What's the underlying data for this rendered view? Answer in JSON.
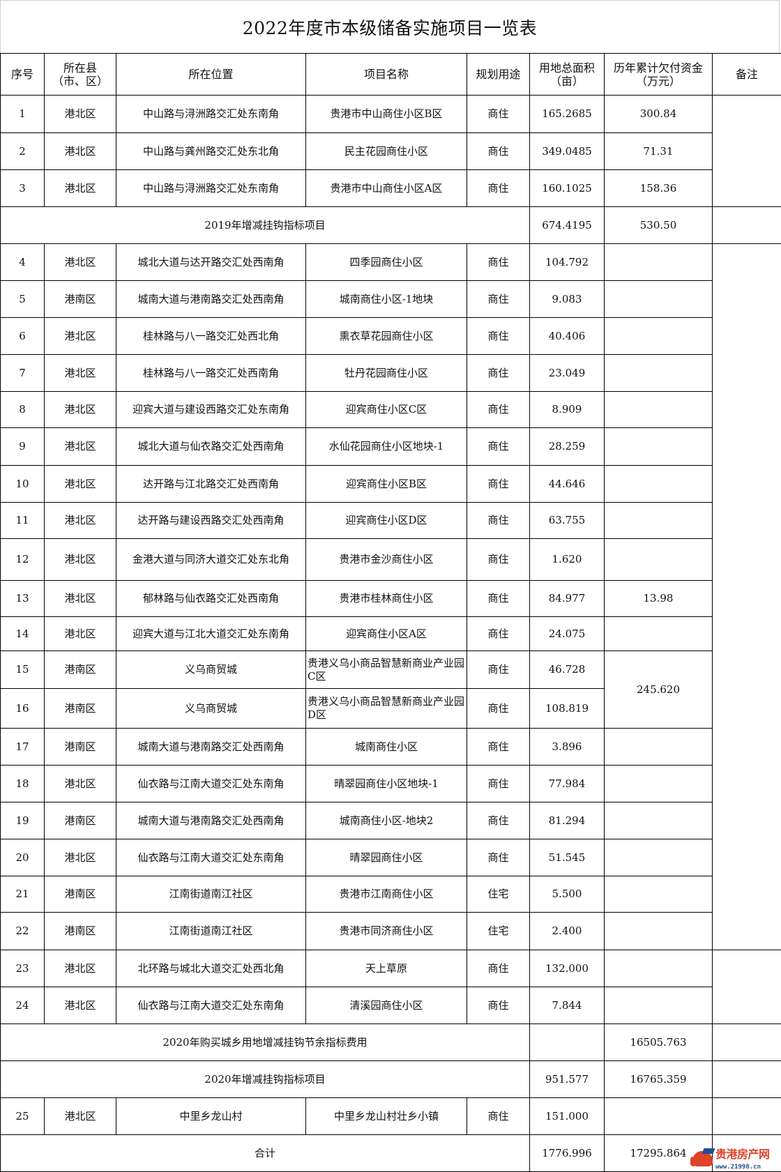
{
  "title": "2022年度市本级储备实施项目一览表",
  "headers": [
    "序号",
    "所在县\n（市、区）",
    "所在位置",
    "项目名称",
    "规划用途",
    "用地总面积\n（亩）",
    "历年累计欠付资金\n（万元）",
    "备注"
  ],
  "rows": [
    {
      "type": "item",
      "seq": "1",
      "county": "港北区",
      "location": "中山路与浔洲路交汇处东南角",
      "name": "贵港市中山商住小区B区",
      "use": "商住",
      "area": "165.2685",
      "funds": "300.84"
    },
    {
      "type": "item",
      "seq": "2",
      "county": "港北区",
      "location": "中山路与龚州路交汇处东北角",
      "name": "民主花园商住小区",
      "use": "商住",
      "area": "349.0485",
      "funds": "71.31"
    },
    {
      "type": "item",
      "seq": "3",
      "county": "港北区",
      "location": "中山路与浔洲路交汇处东南角",
      "name": "贵港市中山商住小区A区",
      "use": "商住",
      "area": "160.1025",
      "funds": "158.36"
    },
    {
      "type": "summary",
      "label": "2019年增减挂钩指标项目",
      "area": "674.4195",
      "funds": "530.50"
    },
    {
      "type": "item",
      "seq": "4",
      "county": "港北区",
      "location": "城北大道与达开路交汇处西南角",
      "name": "四季园商住小区",
      "use": "商住",
      "area": "104.792",
      "funds": ""
    },
    {
      "type": "item",
      "seq": "5",
      "county": "港南区",
      "location": "城南大道与港南路交汇处西南角",
      "name": "城南商住小区-1地块",
      "use": "商住",
      "area": "9.083",
      "funds": ""
    },
    {
      "type": "item",
      "seq": "6",
      "county": "港北区",
      "location": "桂林路与八一路交汇处西北角",
      "name": "熏衣草花园商住小区",
      "use": "商住",
      "area": "40.406",
      "funds": ""
    },
    {
      "type": "item",
      "seq": "7",
      "county": "港北区",
      "location": "桂林路与八一路交汇处西南角",
      "name": "牡丹花园商住小区",
      "use": "商住",
      "area": "23.049",
      "funds": ""
    },
    {
      "type": "item",
      "seq": "8",
      "county": "港北区",
      "location": "迎宾大道与建设西路交汇处东南角",
      "name": "迎宾商住小区C区",
      "use": "商住",
      "area": "8.909",
      "funds": ""
    },
    {
      "type": "item",
      "seq": "9",
      "county": "港北区",
      "location": "城北大道与仙衣路交汇处西南角",
      "name": "水仙花园商住小区地块-1",
      "use": "商住",
      "area": "28.259",
      "funds": ""
    },
    {
      "type": "item",
      "seq": "10",
      "county": "港北区",
      "location": "达开路与江北路交汇处西南角",
      "name": "迎宾商住小区B区",
      "use": "商住",
      "area": "44.646",
      "funds": ""
    },
    {
      "type": "item",
      "seq": "11",
      "county": "港北区",
      "location": "达开路与建设西路交汇处西南角",
      "name": "迎宾商住小区D区",
      "use": "商住",
      "area": "63.755",
      "funds": ""
    },
    {
      "type": "item",
      "seq": "12",
      "county": "港北区",
      "location": "金港大道与同济大道交汇处东北角",
      "name": "贵港市金沙商住小区",
      "use": "商住",
      "area": "1.620",
      "funds": ""
    },
    {
      "type": "item",
      "seq": "13",
      "county": "港北区",
      "location": "郁林路与仙衣路交汇处西南角",
      "name": "贵港市桂林商住小区",
      "use": "商住",
      "area": "84.977",
      "funds": "13.98"
    },
    {
      "type": "item",
      "seq": "14",
      "county": "港北区",
      "location": "迎宾大道与江北大道交汇处东南角",
      "name": "迎宾商住小区A区",
      "use": "商住",
      "area": "24.075",
      "funds": ""
    },
    {
      "type": "item",
      "seq": "15",
      "county": "港南区",
      "location": "义乌商贸城",
      "name": "贵港义乌小商品智慧新商业产业园C区",
      "use": "商住",
      "area": "46.728",
      "funds": "245.620"
    },
    {
      "type": "item",
      "seq": "16",
      "county": "港南区",
      "location": "义乌商贸城",
      "name": "贵港义乌小商品智慧新商业产业园D区",
      "use": "商住",
      "area": "108.819",
      "funds": "245.620"
    },
    {
      "type": "item",
      "seq": "17",
      "county": "港南区",
      "location": "城南大道与港南路交汇处西南角",
      "name": "城南商住小区",
      "use": "商住",
      "area": "3.896",
      "funds": ""
    },
    {
      "type": "item",
      "seq": "18",
      "county": "港北区",
      "location": "仙衣路与江南大道交汇处东南角",
      "name": "晴翠园商住小区地块-1",
      "use": "商住",
      "area": "77.984",
      "funds": ""
    },
    {
      "type": "item",
      "seq": "19",
      "county": "港南区",
      "location": "城南大道与港南路交汇处西南角",
      "name": "城南商住小区-地块2",
      "use": "商住",
      "area": "81.294",
      "funds": ""
    },
    {
      "type": "item",
      "seq": "20",
      "county": "港北区",
      "location": "仙衣路与江南大道交汇处东南角",
      "name": "晴翠园商住小区",
      "use": "商住",
      "area": "51.545",
      "funds": ""
    },
    {
      "type": "item",
      "seq": "21",
      "county": "港南区",
      "location": "江南街道南江社区",
      "name": "贵港市江南商住小区",
      "use": "住宅",
      "area": "5.500",
      "funds": ""
    },
    {
      "type": "item",
      "seq": "22",
      "county": "港南区",
      "location": "江南街道南江社区",
      "name": "贵港市同济商住小区",
      "use": "住宅",
      "area": "2.400",
      "funds": ""
    },
    {
      "type": "item",
      "seq": "23",
      "county": "港北区",
      "location": "北环路与城北大道交汇处西北角",
      "name": "天上草原",
      "use": "商住",
      "area": "132.000",
      "funds": ""
    },
    {
      "type": "item",
      "seq": "24",
      "county": "港北区",
      "location": "仙衣路与江南大道交汇处东南角",
      "name": "清溪园商住小区",
      "use": "商住",
      "area": "7.844",
      "funds": ""
    },
    {
      "type": "summary",
      "label": "2020年购买城乡用地增减挂钩节余指标费用",
      "area": "",
      "funds": "16505.763"
    },
    {
      "type": "summary",
      "label": "2020年增减挂钩指标项目",
      "area": "951.577",
      "funds": "16765.359"
    },
    {
      "type": "item",
      "seq": "25",
      "county": "港北区",
      "location": "中里乡龙山村",
      "name": "中里乡龙山村壮乡小镇",
      "use": "商住",
      "area": "151.000",
      "funds": ""
    },
    {
      "type": "summary",
      "label": "合计",
      "area": "1776.996",
      "funds": "17295.864"
    }
  ],
  "watermark": {
    "name": "贵港房产网",
    "url": "www.21998.cn",
    "colors": {
      "red": "#e0432a",
      "blue": "#1f4f8f"
    }
  }
}
